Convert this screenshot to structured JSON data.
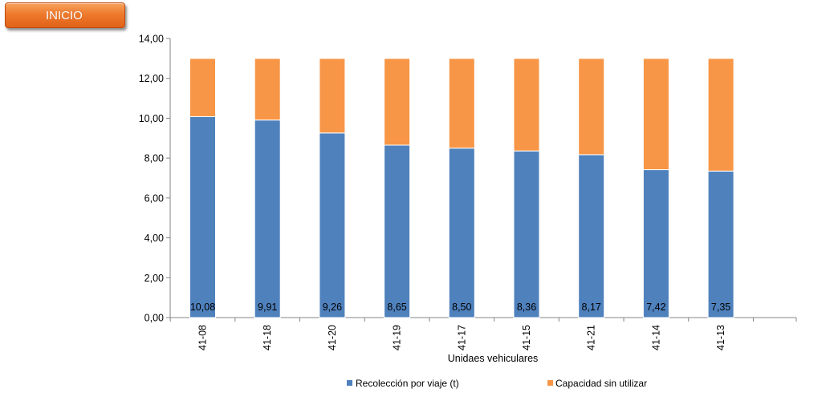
{
  "nav": {
    "inicio_label": "INICIO"
  },
  "chart_data": {
    "type": "bar",
    "stacked": true,
    "categories": [
      "41-08",
      "41-18",
      "41-20",
      "41-19",
      "41-17",
      "41-15",
      "41-21",
      "41-14",
      "41-13"
    ],
    "series": [
      {
        "name": "Recolección por viaje (t)",
        "color": "#4f81bd",
        "values": [
          10.08,
          9.91,
          9.26,
          8.65,
          8.5,
          8.36,
          8.17,
          7.42,
          7.35
        ],
        "labels": [
          "10,08",
          "9,91",
          "9,26",
          "8,65",
          "8,50",
          "8,36",
          "8,17",
          "7,42",
          "7,35"
        ]
      },
      {
        "name": "Capacidad sin utilizar",
        "color": "#f79646",
        "values": [
          2.92,
          3.09,
          3.74,
          4.35,
          4.5,
          4.64,
          4.83,
          5.58,
          5.65
        ]
      }
    ],
    "xlabel": "Unidaes vehiculares",
    "ylabel": "",
    "ylim": [
      0,
      14
    ],
    "yticks": [
      "0,00",
      "2,00",
      "4,00",
      "6,00",
      "8,00",
      "10,00",
      "12,00",
      "14,00"
    ],
    "grid": false,
    "legend": "bottom"
  }
}
